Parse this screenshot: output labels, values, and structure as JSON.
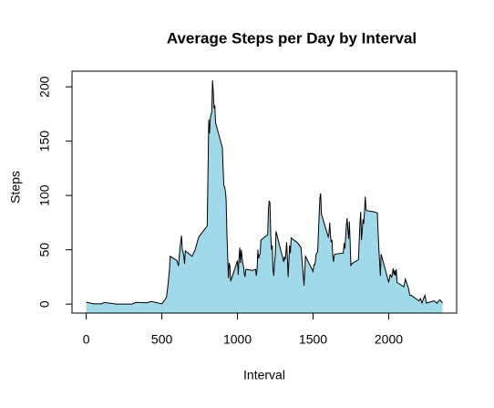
{
  "chart_data": {
    "type": "area",
    "title": "Average Steps per Day by Interval",
    "xlabel": "Interval",
    "ylabel": "Steps",
    "color": "#9fd9ea",
    "line_color": "#000000",
    "x": [
      0,
      50,
      100,
      120,
      200,
      300,
      330,
      400,
      430,
      500,
      515,
      530,
      540,
      550,
      555,
      600,
      610,
      620,
      630,
      635,
      645,
      650,
      655,
      700,
      720,
      740,
      745,
      800,
      810,
      815,
      820,
      830,
      835,
      840,
      845,
      850,
      855,
      900,
      905,
      910,
      915,
      920,
      925,
      930,
      935,
      940,
      945,
      950,
      955,
      1000,
      1005,
      1010,
      1015,
      1020,
      1025,
      1030,
      1035,
      1040,
      1045,
      1050,
      1055,
      1100,
      1120,
      1125,
      1130,
      1135,
      1140,
      1145,
      1150,
      1155,
      1200,
      1205,
      1210,
      1215,
      1220,
      1225,
      1230,
      1235,
      1240,
      1245,
      1250,
      1255,
      1300,
      1305,
      1310,
      1315,
      1320,
      1325,
      1330,
      1335,
      1340,
      1345,
      1350,
      1355,
      1400,
      1420,
      1435,
      1440,
      1450,
      1500,
      1505,
      1510,
      1515,
      1520,
      1525,
      1530,
      1535,
      1540,
      1545,
      1550,
      1555,
      1600,
      1605,
      1610,
      1615,
      1620,
      1625,
      1630,
      1635,
      1640,
      1645,
      1700,
      1705,
      1710,
      1715,
      1720,
      1725,
      1730,
      1735,
      1740,
      1745,
      1750,
      1755,
      1800,
      1805,
      1810,
      1815,
      1820,
      1825,
      1830,
      1835,
      1840,
      1845,
      1850,
      1855,
      1900,
      1925,
      1930,
      1935,
      1940,
      1945,
      1950,
      2000,
      2010,
      2020,
      2030,
      2035,
      2040,
      2045,
      2050,
      2055,
      2100,
      2110,
      2120,
      2130,
      2140,
      2150,
      2200,
      2210,
      2220,
      2230,
      2240,
      2250,
      2300,
      2320,
      2330,
      2340,
      2355
    ],
    "values": [
      1.7,
      0.3,
      0.3,
      1.5,
      0,
      0,
      1.6,
      1.2,
      2.5,
      0.3,
      3,
      6,
      17,
      31,
      44,
      40,
      35,
      52,
      63,
      50,
      45,
      37,
      49,
      44,
      50,
      60,
      62,
      72,
      170,
      157,
      171,
      177,
      206,
      196,
      180,
      183,
      167,
      144,
      125,
      109,
      108,
      104,
      96,
      66,
      45,
      24,
      38,
      35,
      21,
      40,
      27,
      42,
      52,
      38,
      50,
      44,
      37,
      35,
      28,
      25,
      32,
      31,
      32,
      26,
      33,
      50,
      42,
      45,
      46,
      59,
      64,
      88,
      95,
      93,
      63,
      50,
      54,
      32,
      26,
      38,
      45,
      67,
      42,
      39,
      43,
      41,
      46,
      57,
      43,
      25,
      40,
      54,
      47,
      61,
      56,
      52,
      27,
      17,
      44,
      30,
      36,
      36,
      39,
      46,
      47,
      48,
      65,
      82,
      98,
      102,
      83,
      62,
      65,
      75,
      63,
      57,
      59,
      44,
      39,
      45,
      46,
      47,
      56,
      51,
      61,
      73,
      79,
      69,
      60,
      76,
      57,
      35,
      37,
      41,
      58,
      75,
      85,
      59,
      68,
      78,
      74,
      85,
      99,
      87,
      86,
      85,
      84,
      66,
      51,
      39,
      26,
      46,
      20,
      27,
      25,
      33,
      27,
      31,
      26,
      32,
      20,
      16,
      23,
      19,
      15,
      8,
      8,
      3,
      5,
      1,
      5,
      8,
      1,
      3,
      0.8,
      3,
      4,
      1
    ],
    "xlim": [
      -94.2,
      2449.2
    ],
    "xticks": [
      0,
      500,
      1000,
      1500,
      2000
    ],
    "ylim": [
      -8.25,
      214.4
    ],
    "yticks": [
      0,
      50,
      100,
      150,
      200
    ]
  }
}
